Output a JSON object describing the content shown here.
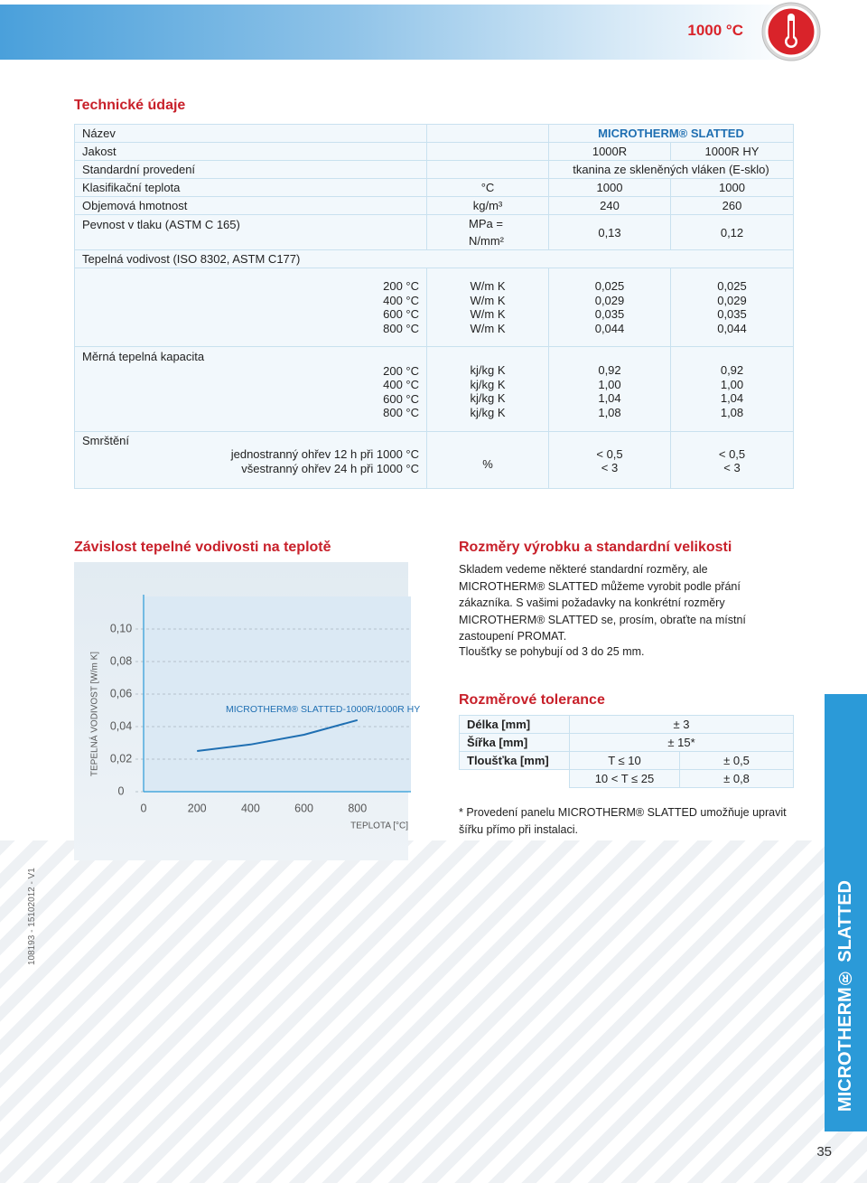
{
  "header": {
    "temperature": "1000 °C"
  },
  "tech": {
    "title": "Technické údaje",
    "name": {
      "label": "Název",
      "value": "MICROTHERM® SLATTED"
    },
    "grade": {
      "label": "Jakost",
      "values": [
        "1000R",
        "1000R HY"
      ]
    },
    "standard": {
      "label": "Standardní provedení",
      "value": "tkanina ze skleněných vláken (E-sklo)"
    },
    "rows": [
      {
        "label": "Klasifikační teplota",
        "unit": "°C",
        "values": [
          "1000",
          "1000"
        ]
      },
      {
        "label": "Objemová hmotnost",
        "unit": "kg/m³",
        "values": [
          "240",
          "260"
        ]
      },
      {
        "label": "Pevnost v tlaku (ASTM C 165)",
        "unit": "MPa = N/mm²",
        "values": [
          "0,13",
          "0,12"
        ]
      }
    ],
    "blocks": [
      {
        "label": "Tepelná vodivost (ISO 8302, ASTM C177)",
        "conditions": [
          "200 °C",
          "400 °C",
          "600 °C",
          "800 °C"
        ],
        "units": [
          "W/m K",
          "W/m K",
          "W/m K",
          "W/m K"
        ],
        "values": [
          [
            "0,025",
            "0,029",
            "0,035",
            "0,044"
          ],
          [
            "0,025",
            "0,029",
            "0,035",
            "0,044"
          ]
        ]
      },
      {
        "label": "Měrná tepelná kapacita",
        "conditions": [
          "200 °C",
          "400 °C",
          "600 °C",
          "800 °C"
        ],
        "units": [
          "kj/kg K",
          "kj/kg K",
          "kj/kg K",
          "kj/kg K"
        ],
        "values": [
          [
            "0,92",
            "1,00",
            "1,04",
            "1,08"
          ],
          [
            "0,92",
            "1,00",
            "1,04",
            "1,08"
          ]
        ]
      },
      {
        "label": "Smrštění",
        "conditions": [
          "jednostranný ohřev 12 h při 1000 °C",
          "všestranný ohřev 24 h při 1000 °C"
        ],
        "units": [
          "%"
        ],
        "values": [
          [
            "< 0,5",
            "< 3"
          ],
          [
            "< 0,5",
            "< 3"
          ]
        ]
      }
    ]
  },
  "chart_data": {
    "type": "line",
    "title": "Závislost tepelné vodivosti na teplotě",
    "y_label": "TEPELNÁ VODIVOST [W/m K]",
    "x_label": "TEPLOTA [°C]",
    "x": [
      200,
      400,
      600,
      800
    ],
    "series": [
      {
        "name": "MICROTHERM® SLATTED-1000R/1000R HY",
        "color": "#1f6fb2",
        "values": [
          0.025,
          0.029,
          0.035,
          0.044
        ]
      }
    ],
    "xlim": [
      0,
      1000
    ],
    "ylim": [
      0,
      0.12
    ],
    "xticks": [
      0,
      200,
      400,
      600,
      800
    ],
    "yticks": [
      0,
      {
        "value": 0.02,
        "label": "0,02"
      },
      {
        "value": 0.04,
        "label": "0,04"
      },
      {
        "value": 0.06,
        "label": "0,06"
      },
      {
        "value": 0.08,
        "label": "0,08"
      },
      {
        "value": 0.1,
        "label": "0,10"
      }
    ],
    "grid": true
  },
  "dimensions": {
    "title": "Rozměry výrobku a standardní velikosti",
    "paragraphs": [
      "Skladem vedeme některé standardní rozměry, ale MICROTHERM® SLATTED můžeme vyrobit podle přání zákazníka. S vašimi požadavky na konkrétní rozměry MICROTHERM® SLATTED se, prosím, obraťte na místní zastoupení PROMAT.",
      "Tloušťky se pohybují od 3 do 25 mm."
    ]
  },
  "tolerances": {
    "title": "Rozměrové tolerance",
    "rows": [
      {
        "label": "Délka [mm]",
        "values": [
          "± 3"
        ]
      },
      {
        "label": "Šířka [mm]",
        "values": [
          "± 15*"
        ]
      },
      {
        "label": "Tloušťka [mm]",
        "values": [
          "T ≤ 10",
          "± 0,5"
        ]
      },
      {
        "values": [
          "10 < T ≤ 25",
          "± 0,8"
        ]
      }
    ],
    "note": "* Provedení panelu MICROTHERM® SLATTED umožňuje upravit šířku přímo při instalaci."
  },
  "side_title": "MICROTHERM® SLATTED",
  "page_number": "35",
  "doc_code": "108193 - 15102012 - V1"
}
